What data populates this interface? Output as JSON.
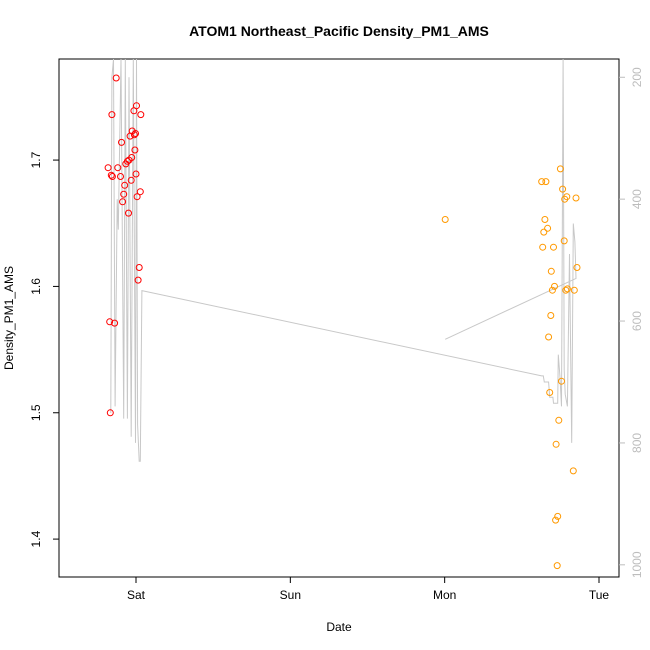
{
  "chart_data": {
    "type": "scatter",
    "title": "ATOM1 Northeast_Pacific Density_PM1_AMS",
    "xlabel": "Date",
    "ylabel": "Density_PM1_AMS",
    "x_ticks": [
      "Sat",
      "Sun",
      "Mon",
      "Tue"
    ],
    "y_ticks": [
      "1.4",
      "1.5",
      "1.6",
      "1.7"
    ],
    "ylim": [
      1.37,
      1.78
    ],
    "y2_ticks": [
      "200",
      "400",
      "600",
      "800",
      "1000"
    ],
    "y2lim": [
      1020,
      170
    ],
    "y2_reversed": true,
    "grid": false,
    "colors": {
      "early": "#ff0000",
      "late": "#ff9900",
      "line": "#c8c8c8",
      "axis": "#000000",
      "axis_right": "#bdbdbd"
    },
    "series": [
      {
        "marker": "circle",
        "color": "#ff0000",
        "points": [
          {
            "x": "Fri 19:40",
            "y": 1.694
          },
          {
            "x": "Fri 19:55",
            "y": 1.572
          },
          {
            "x": "Fri 20:00",
            "y": 1.5
          },
          {
            "x": "Fri 20:10",
            "y": 1.688
          },
          {
            "x": "Fri 20:15",
            "y": 1.736
          },
          {
            "x": "Fri 20:20",
            "y": 1.687
          },
          {
            "x": "Fri 20:40",
            "y": 1.571
          },
          {
            "x": "Fri 20:55",
            "y": 1.765
          },
          {
            "x": "Fri 21:10",
            "y": 1.694
          },
          {
            "x": "Fri 21:35",
            "y": 1.687
          },
          {
            "x": "Fri 21:45",
            "y": 1.714
          },
          {
            "x": "Fri 21:55",
            "y": 1.667
          },
          {
            "x": "Fri 22:05",
            "y": 1.673
          },
          {
            "x": "Fri 22:15",
            "y": 1.68
          },
          {
            "x": "Fri 22:25",
            "y": 1.697
          },
          {
            "x": "Fri 22:40",
            "y": 1.699
          },
          {
            "x": "Fri 22:50",
            "y": 1.658
          },
          {
            "x": "Fri 22:55",
            "y": 1.7
          },
          {
            "x": "Fri 23:05",
            "y": 1.719
          },
          {
            "x": "Fri 23:15",
            "y": 1.684
          },
          {
            "x": "Fri 23:20",
            "y": 1.702
          },
          {
            "x": "Fri 23:25",
            "y": 1.723
          },
          {
            "x": "Fri 23:40",
            "y": 1.739
          },
          {
            "x": "Fri 23:45",
            "y": 1.72
          },
          {
            "x": "Fri 23:50",
            "y": 1.708
          },
          {
            "x": "Fri 23:55",
            "y": 1.721
          },
          {
            "x": "Sat 00:00",
            "y": 1.689
          },
          {
            "x": "Sat 00:05",
            "y": 1.743
          },
          {
            "x": "Sat 00:10",
            "y": 1.671
          },
          {
            "x": "Sat 00:20",
            "y": 1.605
          },
          {
            "x": "Sat 00:30",
            "y": 1.615
          },
          {
            "x": "Sat 00:40",
            "y": 1.675
          },
          {
            "x": "Sat 00:45",
            "y": 1.736
          }
        ]
      },
      {
        "marker": "circle",
        "color": "#ff9900",
        "points": [
          {
            "x": "Mon 00:05",
            "y": 1.653
          },
          {
            "x": "Mon 15:05",
            "y": 1.683
          },
          {
            "x": "Mon 15:15",
            "y": 1.631
          },
          {
            "x": "Mon 15:25",
            "y": 1.643
          },
          {
            "x": "Mon 15:35",
            "y": 1.653
          },
          {
            "x": "Mon 15:45",
            "y": 1.683
          },
          {
            "x": "Mon 16:00",
            "y": 1.646
          },
          {
            "x": "Mon 16:10",
            "y": 1.56
          },
          {
            "x": "Mon 16:20",
            "y": 1.516
          },
          {
            "x": "Mon 16:30",
            "y": 1.577
          },
          {
            "x": "Mon 16:35",
            "y": 1.612
          },
          {
            "x": "Mon 16:45",
            "y": 1.597
          },
          {
            "x": "Mon 16:55",
            "y": 1.631
          },
          {
            "x": "Mon 17:05",
            "y": 1.6
          },
          {
            "x": "Mon 17:15",
            "y": 1.415
          },
          {
            "x": "Mon 17:20",
            "y": 1.475
          },
          {
            "x": "Mon 17:30",
            "y": 1.379
          },
          {
            "x": "Mon 17:35",
            "y": 1.418
          },
          {
            "x": "Mon 17:45",
            "y": 1.494
          },
          {
            "x": "Mon 18:00",
            "y": 1.693
          },
          {
            "x": "Mon 18:10",
            "y": 1.525
          },
          {
            "x": "Mon 18:20",
            "y": 1.677
          },
          {
            "x": "Mon 18:35",
            "y": 1.636
          },
          {
            "x": "Mon 18:40",
            "y": 1.669
          },
          {
            "x": "Mon 18:50",
            "y": 1.597
          },
          {
            "x": "Mon 19:00",
            "y": 1.671
          },
          {
            "x": "Mon 19:05",
            "y": 1.598
          },
          {
            "x": "Mon 20:00",
            "y": 1.454
          },
          {
            "x": "Mon 20:10",
            "y": 1.597
          },
          {
            "x": "Mon 20:25",
            "y": 1.67
          },
          {
            "x": "Mon 20:35",
            "y": 1.615
          }
        ]
      },
      {
        "type": "line",
        "color": "#c8c8c8",
        "axis": "right",
        "points": [
          {
            "x": "Fri 20:00",
            "y": 750
          },
          {
            "x": "Fri 20:05",
            "y": 750
          },
          {
            "x": "Fri 20:15",
            "y": 200
          },
          {
            "x": "Fri 20:30",
            "y": 170
          },
          {
            "x": "Fri 20:45",
            "y": 740
          },
          {
            "x": "Fri 21:05",
            "y": 400
          },
          {
            "x": "Fri 21:15",
            "y": 450
          },
          {
            "x": "Fri 21:40",
            "y": 170
          },
          {
            "x": "Fri 22:05",
            "y": 760
          },
          {
            "x": "Fri 22:20",
            "y": 170
          },
          {
            "x": "Fri 22:40",
            "y": 760
          },
          {
            "x": "Fri 22:55",
            "y": 200
          },
          {
            "x": "Fri 23:15",
            "y": 790
          },
          {
            "x": "Fri 23:35",
            "y": 170
          },
          {
            "x": "Fri 23:55",
            "y": 800
          },
          {
            "x": "Sat 00:05",
            "y": 170
          },
          {
            "x": "Sat 00:15",
            "y": 770
          },
          {
            "x": "Sat 00:30",
            "y": 830
          },
          {
            "x": "Sat 00:40",
            "y": 830
          },
          {
            "x": "Sat 00:55",
            "y": 550
          },
          {
            "x": "Mon 15:05",
            "y": 690
          },
          {
            "x": "Mon 15:20",
            "y": 690
          },
          {
            "x": "Mon 15:30",
            "y": 700
          },
          {
            "x": "Mon 16:10",
            "y": 700
          },
          {
            "x": "Mon 16:20",
            "y": 725
          },
          {
            "x": "Mon 16:50",
            "y": 725
          },
          {
            "x": "Mon 16:55",
            "y": 735
          },
          {
            "x": "Mon 17:35",
            "y": 735
          },
          {
            "x": "Mon 17:40",
            "y": 655
          },
          {
            "x": "Mon 17:55",
            "y": 690
          },
          {
            "x": "Mon 18:10",
            "y": 740
          },
          {
            "x": "Mon 18:25",
            "y": 170
          },
          {
            "x": "Mon 18:35",
            "y": 680
          },
          {
            "x": "Mon 18:45",
            "y": 720
          },
          {
            "x": "Mon 19:05",
            "y": 740
          },
          {
            "x": "Mon 19:25",
            "y": 490
          },
          {
            "x": "Mon 19:45",
            "y": 800
          },
          {
            "x": "Mon 20:00",
            "y": 440
          },
          {
            "x": "Mon 20:15",
            "y": 470
          },
          {
            "x": "Mon 20:25",
            "y": 530
          },
          {
            "x": "Mon 00:05",
            "y": 630
          }
        ]
      }
    ]
  }
}
